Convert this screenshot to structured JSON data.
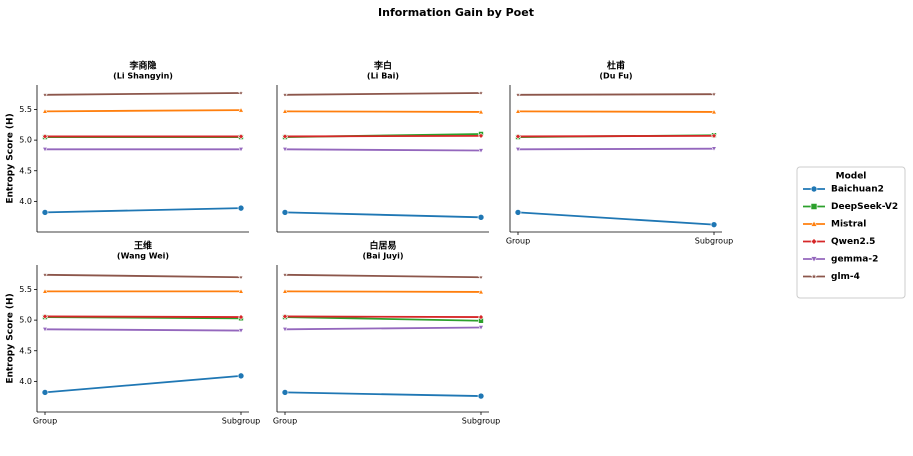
{
  "title": "Information Gain by Poet",
  "legend_title": "Model",
  "chart_data": [
    {
      "type": "line",
      "title": "李商隐",
      "subtitle": "(Li Shangyin)",
      "ylabel": "Entropy Score (H)",
      "ylim": [
        3.5,
        5.9
      ],
      "yticks": [
        {
          "value": 4,
          "label": "4.0"
        },
        {
          "value": 4.5,
          "label": "4.5"
        },
        {
          "value": 5,
          "label": "5.0"
        },
        {
          "value": 5.5,
          "label": "5.5"
        }
      ],
      "series": [
        {
          "name": "Baichuan2",
          "color": "#1f77b4",
          "marker": "circle",
          "values": [
            3.82,
            3.89
          ]
        },
        {
          "name": "DeepSeek-V2",
          "color": "#2ca02c",
          "marker": "square",
          "values": [
            5.05,
            5.05
          ]
        },
        {
          "name": "Mistral",
          "color": "#ff7f0e",
          "marker": "triangle",
          "values": [
            5.47,
            5.49
          ]
        },
        {
          "name": "Qwen2.5",
          "color": "#d62728",
          "marker": "diamond",
          "values": [
            5.06,
            5.06
          ]
        },
        {
          "name": "gemma-2",
          "color": "#9467bd",
          "marker": "triangle-down",
          "values": [
            4.85,
            4.85
          ]
        },
        {
          "name": "glm-4",
          "color": "#8c564b",
          "marker": "star",
          "values": [
            5.74,
            5.77
          ]
        }
      ]
    },
    {
      "type": "line",
      "title": "李白",
      "subtitle": "(Li Bai)",
      "ylim": [
        3.5,
        5.9
      ],
      "series": [
        {
          "color": "#1f77b4",
          "marker": "circle",
          "values": [
            3.82,
            3.74
          ]
        },
        {
          "color": "#2ca02c",
          "marker": "square",
          "values": [
            5.05,
            5.1
          ]
        },
        {
          "color": "#ff7f0e",
          "marker": "triangle",
          "values": [
            5.47,
            5.46
          ]
        },
        {
          "color": "#d62728",
          "marker": "diamond",
          "values": [
            5.06,
            5.07
          ]
        },
        {
          "color": "#9467bd",
          "marker": "triangle-down",
          "values": [
            4.85,
            4.83
          ]
        },
        {
          "color": "#8c564b",
          "marker": "star",
          "values": [
            5.74,
            5.77
          ]
        }
      ]
    },
    {
      "type": "line",
      "title": "杜甫",
      "subtitle": "(Du Fu)",
      "ylim": [
        3.5,
        5.9
      ],
      "categories": [
        "Group",
        "Subgroup"
      ],
      "series": [
        {
          "color": "#1f77b4",
          "marker": "circle",
          "values": [
            3.82,
            3.62
          ]
        },
        {
          "color": "#2ca02c",
          "marker": "square",
          "values": [
            5.05,
            5.08
          ]
        },
        {
          "color": "#ff7f0e",
          "marker": "triangle",
          "values": [
            5.47,
            5.46
          ]
        },
        {
          "color": "#d62728",
          "marker": "diamond",
          "values": [
            5.06,
            5.07
          ]
        },
        {
          "color": "#9467bd",
          "marker": "triangle-down",
          "values": [
            4.85,
            4.86
          ]
        },
        {
          "color": "#8c564b",
          "marker": "star",
          "values": [
            5.74,
            5.75
          ]
        }
      ]
    },
    {
      "type": "line",
      "title": "王维",
      "subtitle": "(Wang Wei)",
      "ylabel": "Entropy Score (H)",
      "ylim": [
        3.5,
        5.9
      ],
      "categories": [
        "Group",
        "Subgroup"
      ],
      "yticks": [
        {
          "value": 4,
          "label": "4.0"
        },
        {
          "value": 4.5,
          "label": "4.5"
        },
        {
          "value": 5,
          "label": "5.0"
        },
        {
          "value": 5.5,
          "label": "5.5"
        }
      ],
      "series": [
        {
          "color": "#1f77b4",
          "marker": "circle",
          "values": [
            3.82,
            4.09
          ]
        },
        {
          "color": "#2ca02c",
          "marker": "square",
          "values": [
            5.05,
            5.03
          ]
        },
        {
          "color": "#ff7f0e",
          "marker": "triangle",
          "values": [
            5.47,
            5.47
          ]
        },
        {
          "color": "#d62728",
          "marker": "diamond",
          "values": [
            5.06,
            5.05
          ]
        },
        {
          "color": "#9467bd",
          "marker": "triangle-down",
          "values": [
            4.85,
            4.83
          ]
        },
        {
          "color": "#8c564b",
          "marker": "star",
          "values": [
            5.74,
            5.7
          ]
        }
      ]
    },
    {
      "type": "line",
      "title": "白居易",
      "subtitle": "(Bai Juyi)",
      "ylim": [
        3.5,
        5.9
      ],
      "categories": [
        "Group",
        "Subgroup"
      ],
      "series": [
        {
          "color": "#1f77b4",
          "marker": "circle",
          "values": [
            3.82,
            3.76
          ]
        },
        {
          "color": "#2ca02c",
          "marker": "square",
          "values": [
            5.05,
            4.99
          ]
        },
        {
          "color": "#ff7f0e",
          "marker": "triangle",
          "values": [
            5.47,
            5.46
          ]
        },
        {
          "color": "#d62728",
          "marker": "diamond",
          "values": [
            5.06,
            5.05
          ]
        },
        {
          "color": "#9467bd",
          "marker": "triangle-down",
          "values": [
            4.85,
            4.88
          ]
        },
        {
          "color": "#8c564b",
          "marker": "star",
          "values": [
            5.74,
            5.7
          ]
        }
      ]
    }
  ]
}
